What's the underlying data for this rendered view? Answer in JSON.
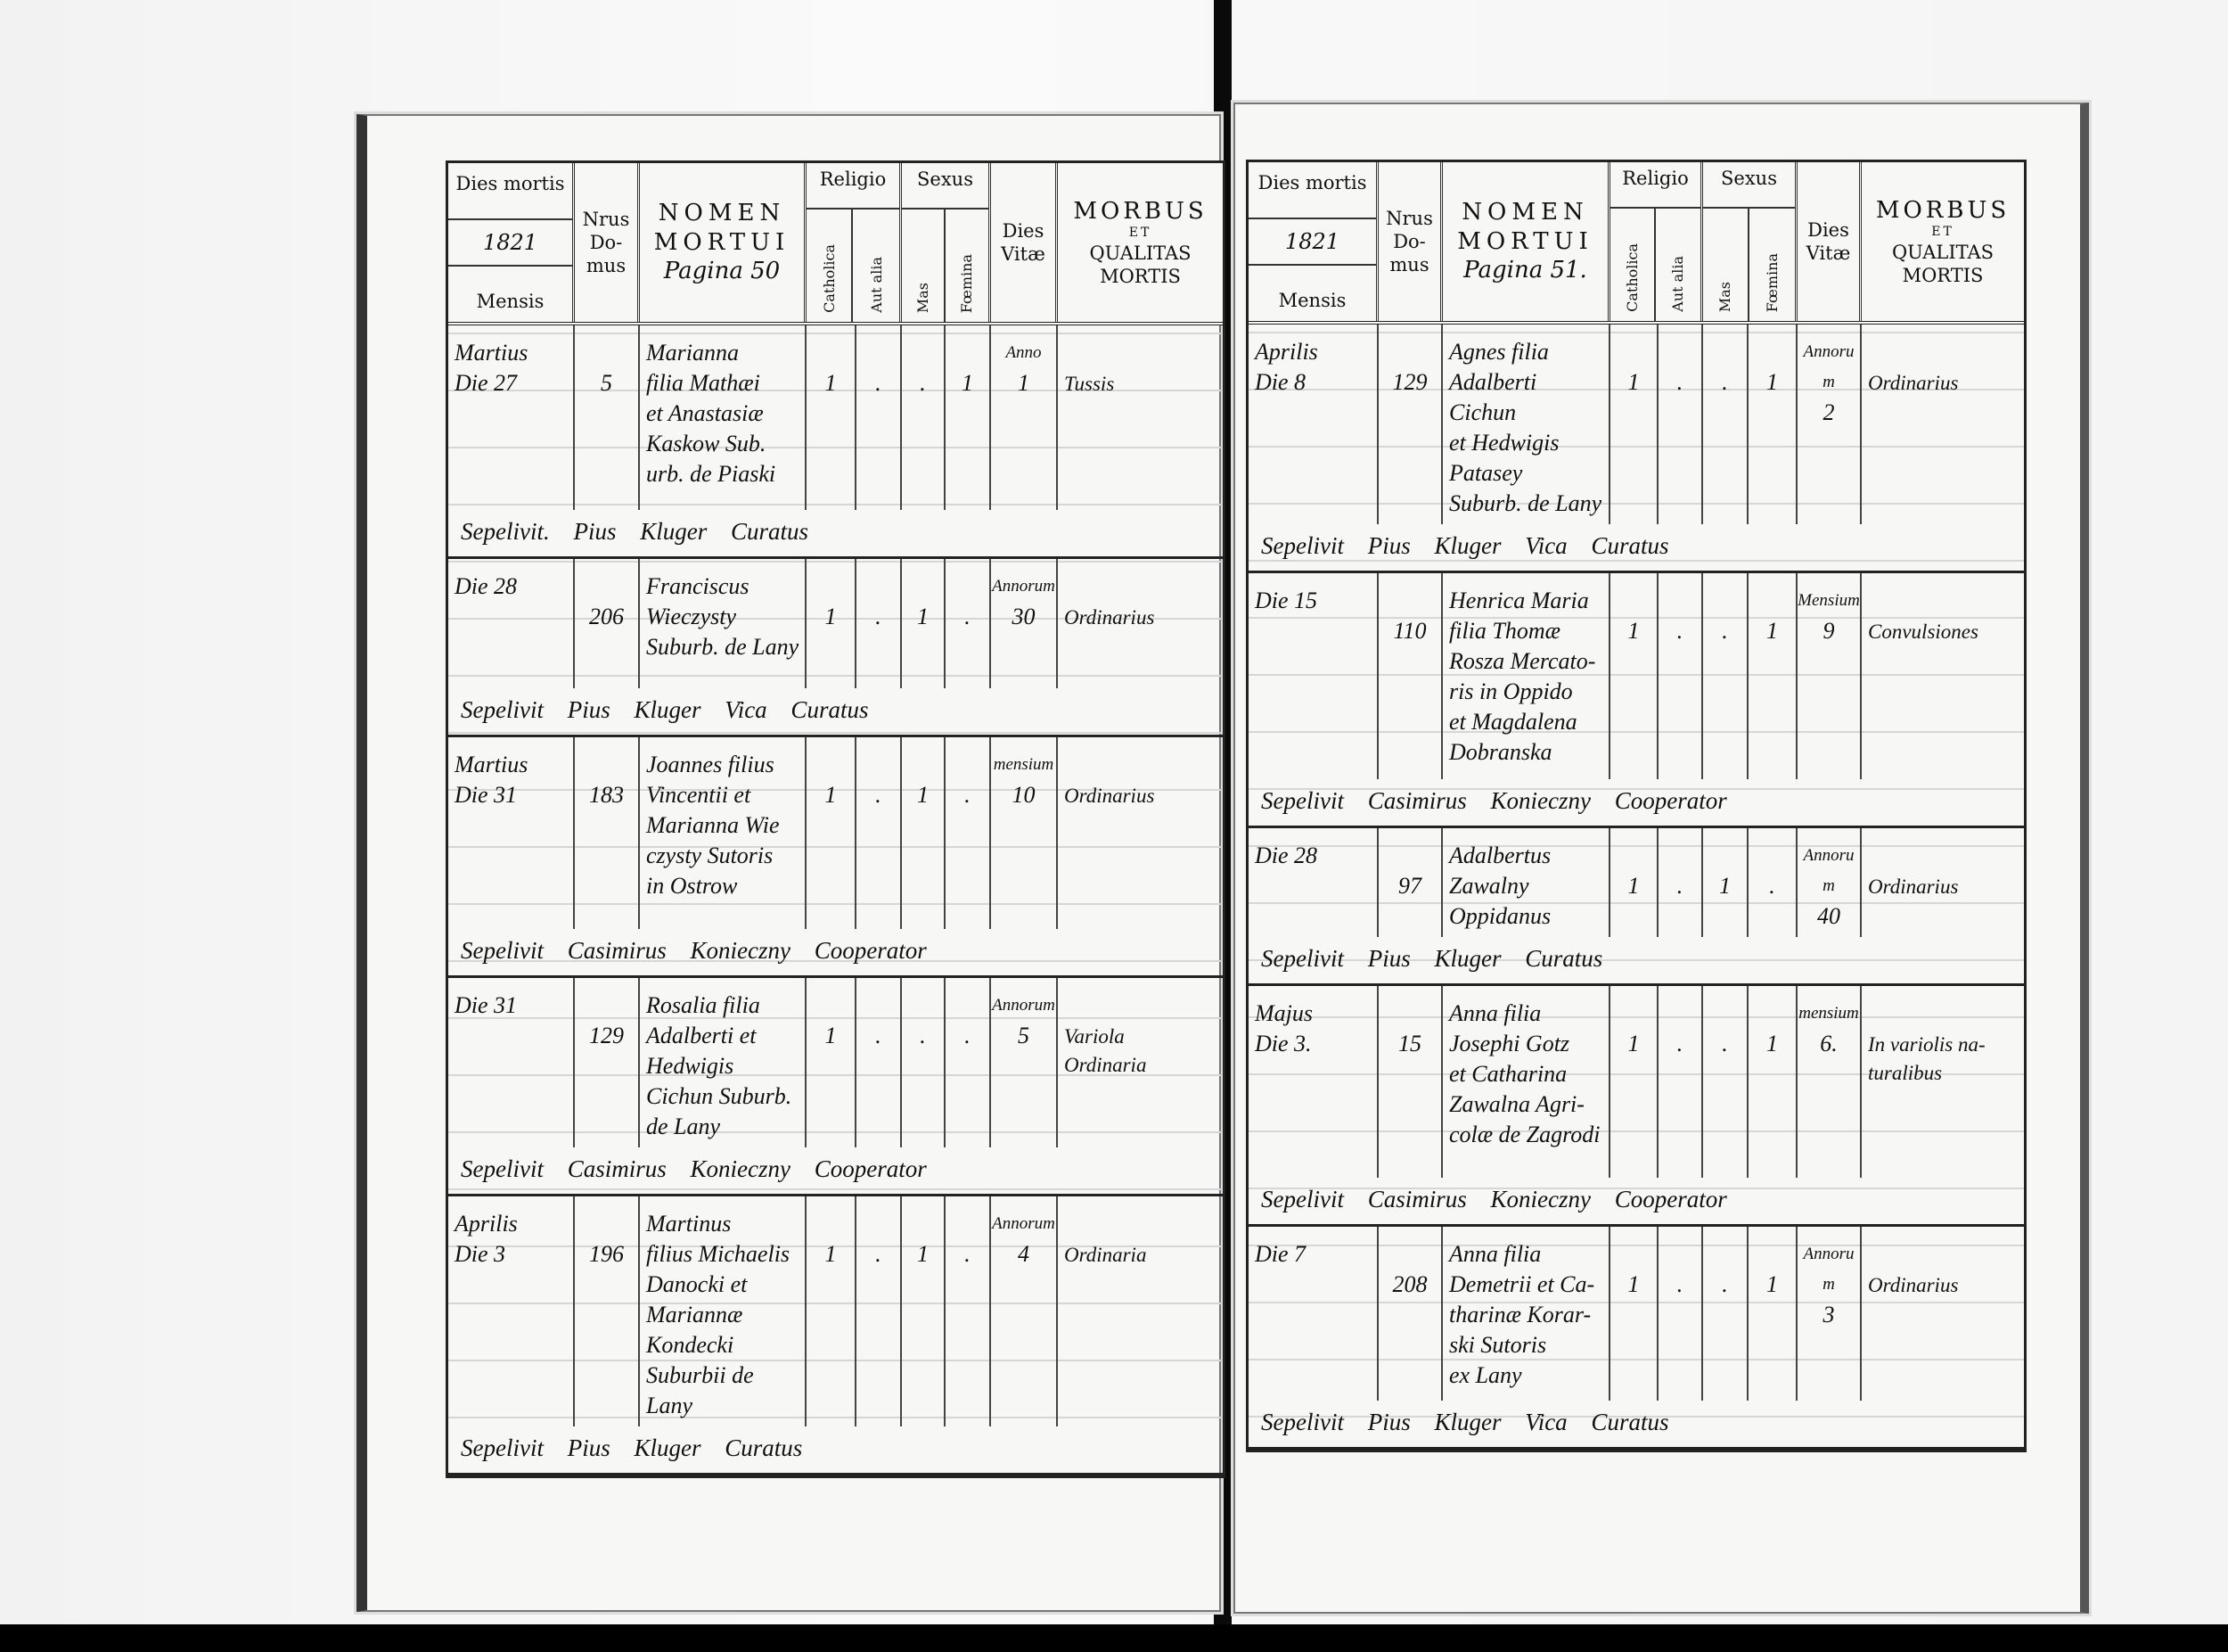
{
  "header": {
    "dies_mortis": "Dies mortis",
    "year": "1821",
    "mensis": "Mensis",
    "nrus": "Nrus",
    "domus": "Do-\nmus",
    "nomen": "NOMEN",
    "mortui": "MORTUI",
    "religio": "Religio",
    "catholica": "Catholica",
    "aut_alia": "Aut alia",
    "sexus": "Sexus",
    "mas": "Mas",
    "foemina": "Fœmina",
    "dies": "Dies",
    "vitae": "Vitæ",
    "morbus": "MORBUS",
    "et": "ET",
    "qualitas": "QUALITAS",
    "mortis": "MORTIS"
  },
  "left_page": {
    "pagina": "Pagina 50",
    "entries": [
      {
        "mensis": [
          "Martius",
          "Die 27"
        ],
        "domus": "5",
        "nomen": [
          "Marianna",
          "filia Mathæi",
          "et Anastasiæ",
          "Kaskow Sub.",
          "urb. de Piaski"
        ],
        "cath": "1",
        "alia": ".",
        "mas": ".",
        "foem": "1",
        "vitae": [
          "Anno",
          "1"
        ],
        "morbus": [
          "Tussis"
        ],
        "sepelivit": "Sepelivit. Pius Kluger Curatus"
      },
      {
        "mensis": [
          "Die 28"
        ],
        "domus": "206",
        "nomen": [
          "Franciscus",
          "Wieczysty",
          "Suburb. de Lany"
        ],
        "cath": "1",
        "alia": ".",
        "mas": "1",
        "foem": ".",
        "vitae": [
          "Annorum",
          "30"
        ],
        "morbus": [
          "Ordinarius"
        ],
        "sepelivit": "Sepelivit Pius Kluger Vica Curatus"
      },
      {
        "mensis": [
          "Martius",
          "Die 31"
        ],
        "domus": "183",
        "nomen": [
          "Joannes filius",
          "Vincentii et",
          "Marianna Wie",
          "czysty Sutoris",
          "in Ostrow"
        ],
        "cath": "1",
        "alia": ".",
        "mas": "1",
        "foem": ".",
        "vitae": [
          "mensium",
          "10"
        ],
        "morbus": [
          "Ordinarius"
        ],
        "sepelivit": "Sepelivit Casimirus Konieczny Cooperator"
      },
      {
        "mensis": [
          "Die 31"
        ],
        "domus": "129",
        "nomen": [
          "Rosalia filia",
          "Adalberti et",
          "Hedwigis",
          "Cichun Suburb.",
          "de Lany"
        ],
        "cath": "1",
        "alia": ".",
        "mas": ".",
        "foem": ".",
        "vitae": [
          "Annorum",
          "5"
        ],
        "morbus": [
          "Variola",
          "Ordinaria"
        ],
        "sepelivit": "Sepelivit Casimirus Konieczny Cooperator"
      },
      {
        "mensis": [
          "Aprilis",
          "Die 3"
        ],
        "domus": "196",
        "nomen": [
          "Martinus",
          "filius Michaelis",
          "Danocki et",
          "Mariannæ Kondecki",
          "Suburbii de Lany"
        ],
        "cath": "1",
        "alia": ".",
        "mas": "1",
        "foem": ".",
        "vitae": [
          "Annorum",
          "4"
        ],
        "morbus": [
          "Ordinaria"
        ],
        "sepelivit": "Sepelivit Pius Kluger Curatus"
      }
    ]
  },
  "right_page": {
    "pagina": "Pagina 51.",
    "entries": [
      {
        "mensis": [
          "Aprilis",
          "Die 8"
        ],
        "domus": "129",
        "nomen": [
          "Agnes filia",
          "Adalberti Cichun",
          "et Hedwigis Patasey",
          "Suburb. de Lany"
        ],
        "cath": "1",
        "alia": ".",
        "mas": ".",
        "foem": "1",
        "vitae": [
          "Annorum",
          "2"
        ],
        "morbus": [
          "Ordinarius"
        ],
        "sepelivit": "Sepelivit Pius Kluger Vica Curatus"
      },
      {
        "mensis": [
          "Die 15"
        ],
        "domus": "110",
        "nomen": [
          "Henrica Maria",
          "filia Thomæ",
          "Rosza Mercato-",
          "ris in Oppido",
          "et Magdalena",
          "Dobranska"
        ],
        "cath": "1",
        "alia": ".",
        "mas": ".",
        "foem": "1",
        "vitae": [
          "Mensium",
          "9"
        ],
        "morbus": [
          "Convulsiones"
        ],
        "sepelivit": "Sepelivit Casimirus Konieczny Cooperator"
      },
      {
        "mensis": [
          "Die 28"
        ],
        "domus": "97",
        "nomen": [
          "Adalbertus",
          "Zawalny",
          "Oppidanus"
        ],
        "cath": "1",
        "alia": ".",
        "mas": "1",
        "foem": ".",
        "vitae": [
          "Annorum",
          "40"
        ],
        "morbus": [
          "Ordinarius"
        ],
        "sepelivit": "Sepelivit Pius Kluger Curatus"
      },
      {
        "mensis": [
          "Majus",
          "Die 3."
        ],
        "domus": "15",
        "nomen": [
          "Anna filia",
          "Josephi Gotz",
          "et Catharina",
          "Zawalna Agri-",
          "colæ de Zagrodi"
        ],
        "cath": "1",
        "alia": ".",
        "mas": ".",
        "foem": "1",
        "vitae": [
          "mensium",
          "6."
        ],
        "morbus": [
          "In variolis na-",
          "turalibus"
        ],
        "sepelivit": "Sepelivit Casimirus Konieczny Cooperator"
      },
      {
        "mensis": [
          "Die 7"
        ],
        "domus": "208",
        "nomen": [
          "Anna filia",
          "Demetrii et Ca-",
          "tharinæ Korar-",
          "ski Sutoris",
          "ex Lany"
        ],
        "cath": "1",
        "alia": ".",
        "mas": ".",
        "foem": "1",
        "vitae": [
          "Annorum",
          "3"
        ],
        "morbus": [
          "Ordinarius"
        ],
        "sepelivit": "Sepelivit Pius Kluger Vica Curatus"
      }
    ]
  }
}
